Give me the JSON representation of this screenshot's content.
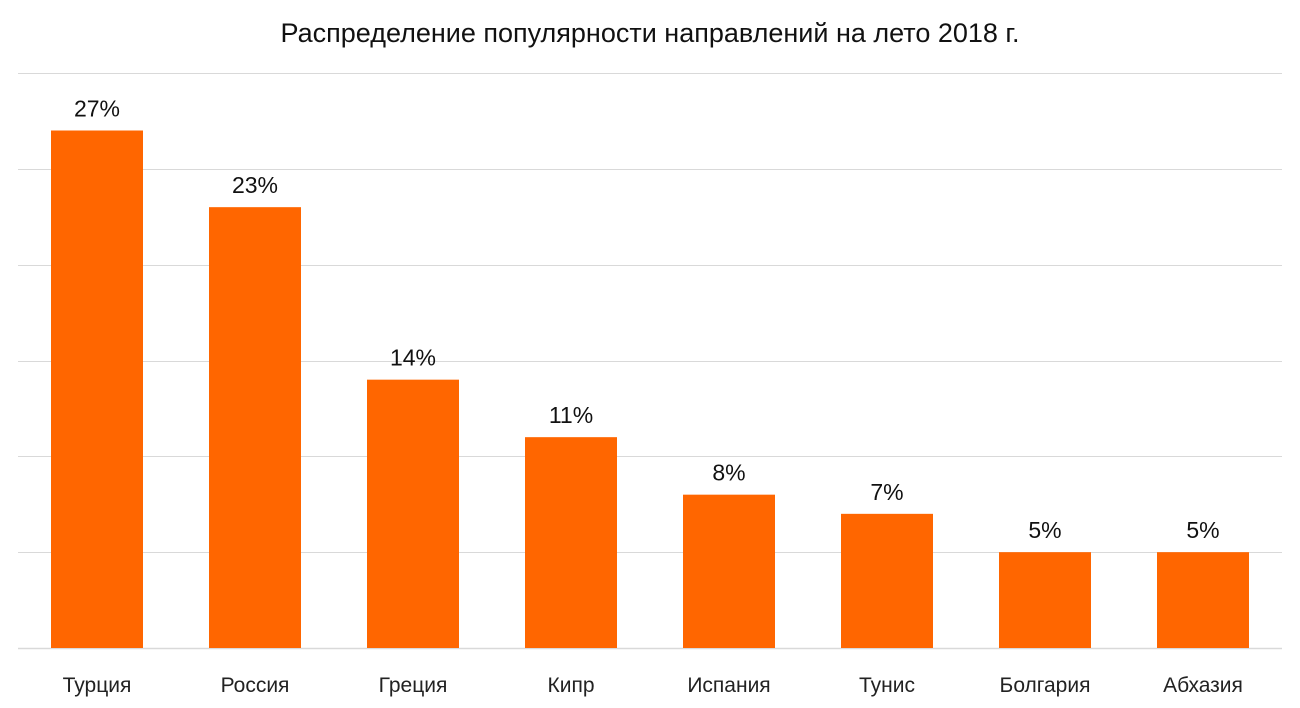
{
  "chart_data": {
    "type": "bar",
    "title": "Распределение популярности направлений на лето 2018 г.",
    "categories": [
      "Турция",
      "Россия",
      "Греция",
      "Кипр",
      "Испания",
      "Тунис",
      "Болгария",
      "Абхазия"
    ],
    "values": [
      27,
      23,
      14,
      11,
      8,
      7,
      5,
      5
    ],
    "value_labels": [
      "27%",
      "23%",
      "14%",
      "11%",
      "8%",
      "7%",
      "5%",
      "5%"
    ],
    "ylim": [
      0,
      30
    ],
    "grid": true,
    "bar_color": "#FF6600",
    "grid_color": "#D9D9D9"
  }
}
